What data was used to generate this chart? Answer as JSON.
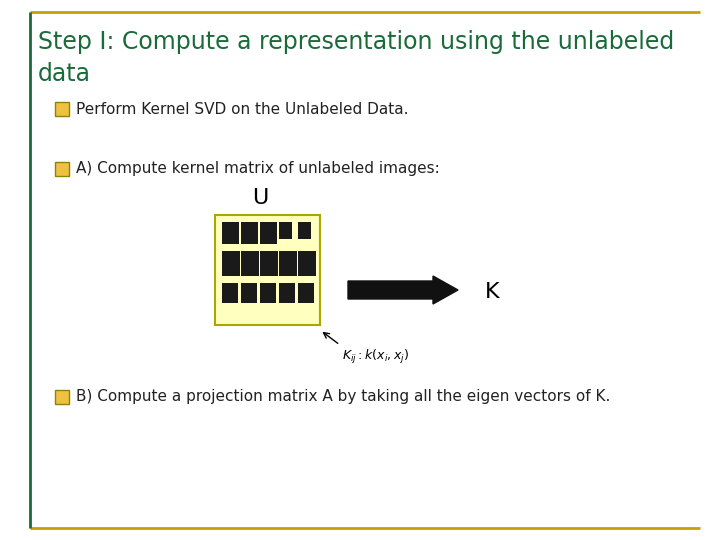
{
  "title_line1": "Step I: Compute a representation using the unlabeled",
  "title_line2": "data",
  "title_color": "#1a6b3a",
  "title_fontsize": 17,
  "bullet1": "Perform Kernel SVD on the Unlabeled Data.",
  "bullet2": "A) Compute kernel matrix of unlabeled images:",
  "bullet3": "B) Compute a projection matrix A by taking all the eigen vectors of K.",
  "bullet_color": "#222222",
  "bullet_fontsize": 11,
  "bg_color": "#ffffff",
  "border_top_color": "#c8a000",
  "border_bottom_color": "#c8a000",
  "border_left_color": "#1a6b3a",
  "checkbox_face": "#f0c040",
  "checkbox_edge": "#888800",
  "matrix_bg": "#ffffc0",
  "matrix_border": "#aaa800",
  "cell_color": "#1a1a1a",
  "arrow_color": "#111111",
  "label_U_fontsize": 16,
  "label_K_fontsize": 16,
  "formula_fontsize": 9
}
